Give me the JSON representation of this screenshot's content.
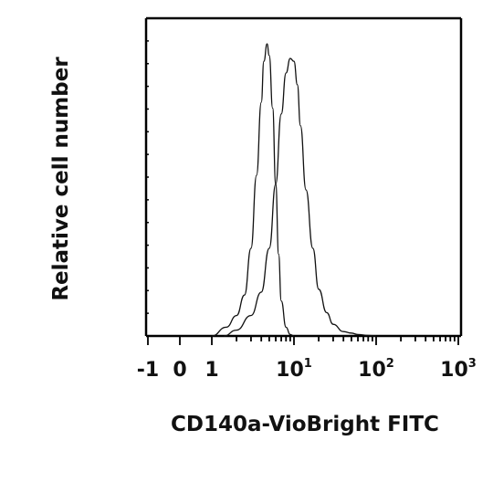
{
  "chart_data": {
    "type": "histogram-overlay",
    "title": "",
    "xlabel": "CD140a-VioBright FITC",
    "ylabel": "Relative cell number",
    "x_scale": "biexponential (linear around 0, log10 above 1)",
    "xlim": [
      -1,
      1000
    ],
    "ylim": [
      0,
      1
    ],
    "grid": false,
    "legend": "none",
    "x_ticks": [
      {
        "value": -1,
        "base": "-1",
        "exp": ""
      },
      {
        "value": 0,
        "base": "0",
        "exp": ""
      },
      {
        "value": 1,
        "base": "1",
        "exp": ""
      },
      {
        "value": 10,
        "base": "10",
        "exp": "1"
      },
      {
        "value": 100,
        "base": "10",
        "exp": "2"
      },
      {
        "value": 1000,
        "base": "10",
        "exp": "3"
      }
    ],
    "series": [
      {
        "x": [
          1,
          1.5,
          2,
          2.5,
          3,
          3.5,
          4,
          4.3,
          4.7,
          5,
          5.5,
          6,
          6.5,
          7,
          8,
          9,
          10
        ],
        "y": [
          0,
          0.03,
          0.07,
          0.14,
          0.3,
          0.55,
          0.8,
          0.94,
          1.0,
          0.96,
          0.78,
          0.52,
          0.28,
          0.12,
          0.03,
          0.005,
          0
        ]
      },
      {
        "x": [
          1.4,
          2,
          3,
          4,
          5,
          6,
          7,
          8,
          9,
          10,
          11,
          12,
          14,
          17,
          20,
          25,
          30,
          40,
          50,
          60,
          80,
          100
        ],
        "y": [
          0,
          0.02,
          0.07,
          0.15,
          0.3,
          0.52,
          0.76,
          0.9,
          0.95,
          0.94,
          0.86,
          0.72,
          0.5,
          0.3,
          0.16,
          0.08,
          0.04,
          0.015,
          0.01,
          0.005,
          0.002,
          0
        ]
      }
    ]
  }
}
